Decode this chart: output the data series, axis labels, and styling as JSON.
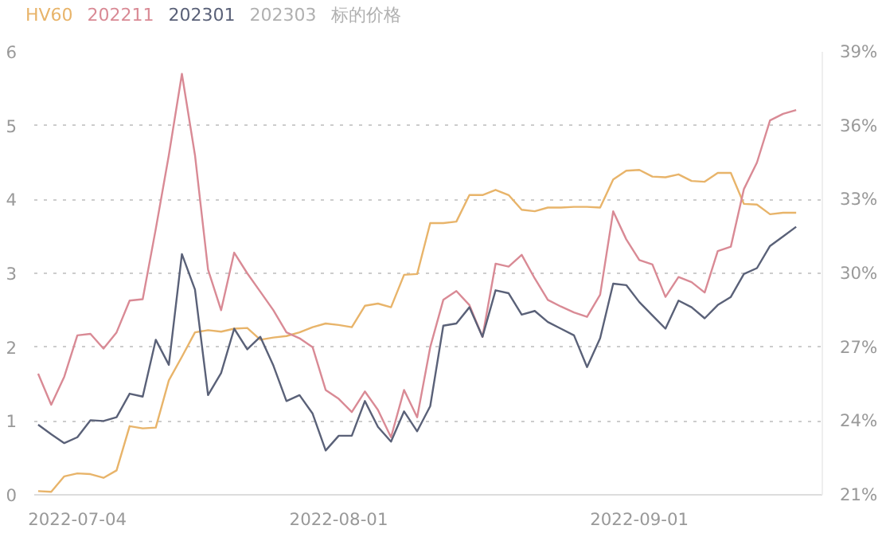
{
  "chart_data": {
    "type": "line",
    "categories": [
      null,
      null,
      null,
      "2022-07-04",
      null,
      null,
      null,
      null,
      null,
      null,
      null,
      null,
      null,
      null,
      null,
      null,
      null,
      null,
      null,
      null,
      null,
      null,
      null,
      "2022-08-01",
      null,
      null,
      null,
      null,
      null,
      null,
      null,
      null,
      null,
      null,
      null,
      null,
      null,
      null,
      null,
      null,
      null,
      null,
      null,
      null,
      null,
      null,
      "2022-09-01",
      null,
      null,
      null,
      null,
      null,
      null,
      null,
      null,
      null,
      null,
      null,
      null
    ],
    "series": [
      {
        "name": "HV60",
        "color": "#e8b46a",
        "values": [
          0.05,
          0.04,
          0.25,
          0.29,
          0.28,
          0.23,
          0.33,
          0.93,
          0.9,
          0.91,
          1.55,
          1.87,
          2.2,
          2.23,
          2.21,
          2.25,
          2.26,
          2.1,
          2.13,
          2.15,
          2.2,
          2.27,
          2.32,
          2.3,
          2.27,
          2.56,
          2.59,
          2.54,
          2.98,
          2.99,
          3.68,
          3.68,
          3.7,
          4.06,
          4.06,
          4.13,
          4.06,
          3.86,
          3.84,
          3.89,
          3.89,
          3.9,
          3.9,
          3.89,
          4.27,
          4.39,
          4.4,
          4.31,
          4.3,
          4.34,
          4.25,
          4.24,
          4.36,
          4.36,
          3.94,
          3.93,
          3.8,
          3.82,
          3.82
        ]
      },
      {
        "name": "202211",
        "color": "#d98a95",
        "values": [
          1.64,
          1.22,
          1.6,
          2.16,
          2.18,
          1.98,
          2.2,
          2.63,
          2.65,
          3.6,
          4.6,
          5.7,
          4.6,
          3.05,
          2.5,
          3.28,
          3.0,
          2.75,
          2.5,
          2.2,
          2.12,
          2.0,
          1.42,
          1.3,
          1.12,
          1.4,
          1.15,
          0.78,
          1.42,
          1.05,
          2.0,
          2.64,
          2.76,
          2.57,
          2.14,
          3.13,
          3.09,
          3.25,
          2.93,
          2.64,
          2.55,
          2.47,
          2.41,
          2.71,
          3.84,
          3.46,
          3.18,
          3.12,
          2.68,
          2.95,
          2.88,
          2.74,
          3.3,
          3.36,
          4.14,
          4.5,
          5.07,
          5.16,
          5.21
        ]
      },
      {
        "name": "202301",
        "color": "#5a6178",
        "values": [
          0.95,
          0.82,
          0.7,
          0.78,
          1.01,
          1.0,
          1.05,
          1.37,
          1.33,
          2.1,
          1.76,
          3.26,
          2.78,
          1.35,
          1.65,
          2.25,
          1.97,
          2.14,
          1.75,
          1.27,
          1.35,
          1.1,
          0.6,
          0.8,
          0.8,
          1.27,
          0.92,
          0.72,
          1.13,
          0.86,
          1.2,
          2.29,
          2.32,
          2.54,
          2.14,
          2.77,
          2.73,
          2.44,
          2.49,
          2.34,
          2.25,
          2.16,
          1.73,
          2.12,
          2.86,
          2.84,
          2.61,
          2.43,
          2.25,
          2.63,
          2.54,
          2.39,
          2.57,
          2.68,
          2.99,
          3.07,
          3.37,
          3.5,
          3.63
        ]
      },
      {
        "name": "202303",
        "color": "#b0b0b0",
        "values": [
          null,
          null,
          null,
          null,
          null,
          null,
          null,
          null,
          null,
          null,
          null,
          null,
          null,
          null,
          null,
          null,
          null,
          null,
          null,
          null,
          null,
          null,
          null,
          null,
          null,
          null,
          null,
          null,
          null,
          null,
          null,
          null,
          null,
          null,
          null,
          null,
          null,
          null,
          null,
          null,
          null,
          null,
          null,
          null,
          null,
          null,
          null,
          null,
          null,
          null,
          null,
          null,
          null,
          null,
          null,
          null,
          null,
          null,
          null
        ]
      },
      {
        "name": "标的价格",
        "color": "#b0b0b0",
        "values": [
          null,
          null,
          null,
          null,
          null,
          null,
          null,
          null,
          null,
          null,
          null,
          null,
          null,
          null,
          null,
          null,
          null,
          null,
          null,
          null,
          null,
          null,
          null,
          null,
          null,
          null,
          null,
          null,
          null,
          null,
          null,
          null,
          null,
          null,
          null,
          null,
          null,
          null,
          null,
          null,
          null,
          null,
          null,
          null,
          null,
          null,
          null,
          null,
          null,
          null,
          null,
          null,
          null,
          null,
          null,
          null,
          null,
          null,
          null
        ]
      }
    ],
    "ylim": [
      0,
      6
    ],
    "yticks": [
      0,
      1,
      2,
      3,
      4,
      5,
      6
    ],
    "y2lim": [
      21,
      39
    ],
    "y2ticks": [
      {
        "value": 21,
        "label": "21%"
      },
      {
        "value": 24,
        "label": "24%"
      },
      {
        "value": 27,
        "label": "27%"
      },
      {
        "value": 30,
        "label": "30%"
      },
      {
        "value": 33,
        "label": "33%"
      },
      {
        "value": 36,
        "label": "36%"
      },
      {
        "value": 39,
        "label": "39%"
      }
    ],
    "grid": "y"
  }
}
